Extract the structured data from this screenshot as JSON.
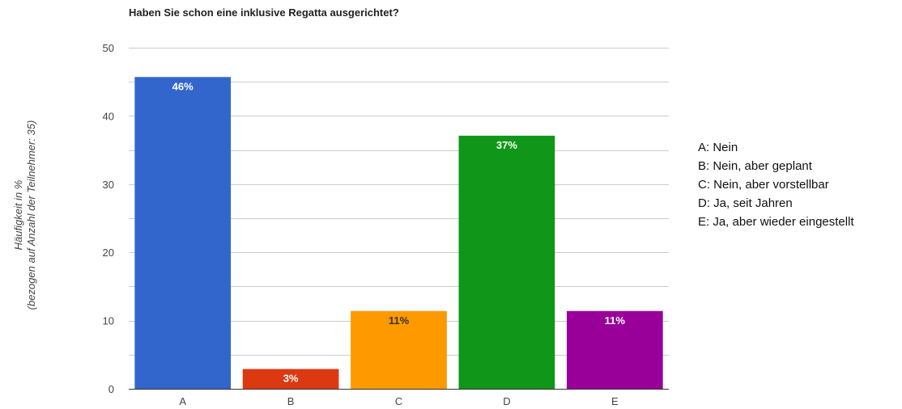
{
  "chart_data": {
    "type": "bar",
    "title": "Haben Sie schon eine inklusive Regatta ausgerichtet?",
    "ylabel_lines": [
      "Häufigkeit in %",
      "(bezogen auf Anzahl der Teilnehmer: 35)"
    ],
    "ylim": [
      0,
      50
    ],
    "yticks": [
      0,
      10,
      20,
      30,
      40,
      50
    ],
    "grid": true,
    "categories": [
      "A",
      "B",
      "C",
      "D",
      "E"
    ],
    "values": [
      45.7,
      2.9,
      11.4,
      37.1,
      11.4
    ],
    "data_labels": [
      "46%",
      "3%",
      "11%",
      "37%",
      "11%"
    ],
    "colors": [
      "#3366cc",
      "#dc3912",
      "#ff9900",
      "#109618",
      "#990099"
    ],
    "label_colors": [
      "#ffffff",
      "#ffffff",
      "#333333",
      "#ffffff",
      "#ffffff"
    ],
    "legend_placement": "right"
  },
  "legend": [
    "A: Nein",
    "B: Nein, aber geplant",
    "C: Nein, aber vorstellbar",
    "D: Ja, seit Jahren",
    "E: Ja, aber wieder eingestellt"
  ]
}
